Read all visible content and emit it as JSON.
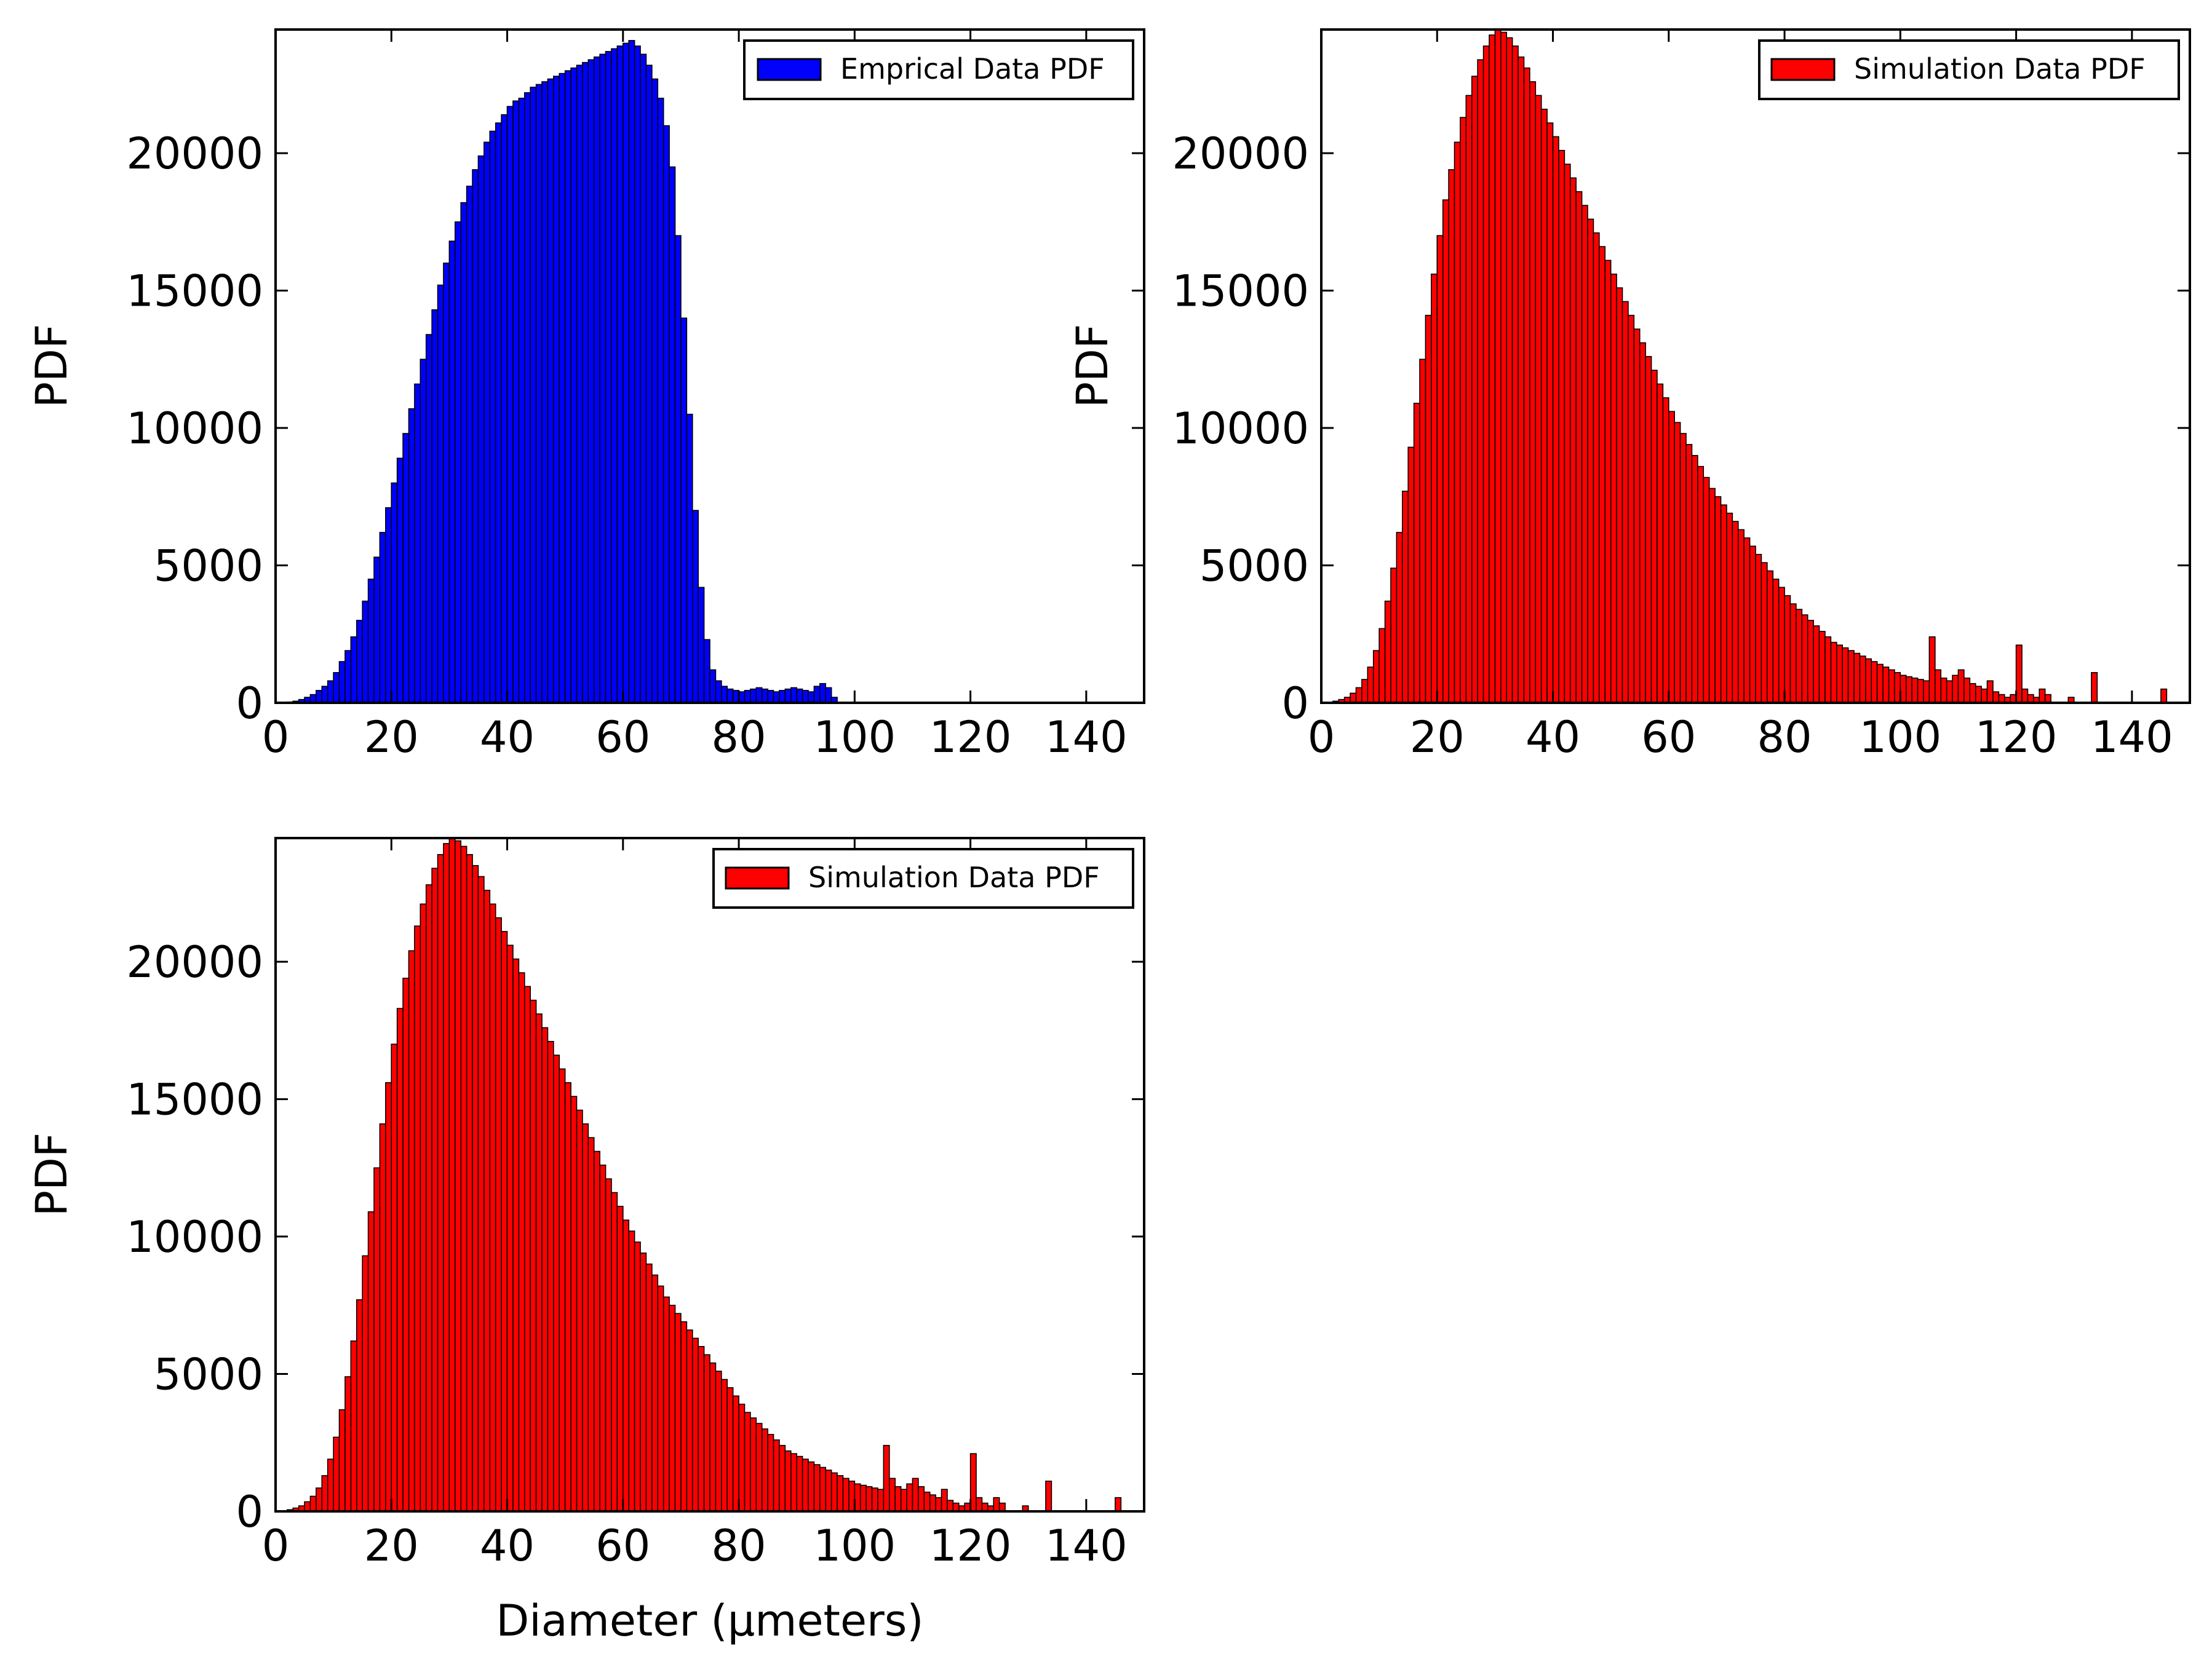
{
  "figure": {
    "panels": [
      {
        "id": "top-left",
        "legend_label": "Emprical Data PDF",
        "ylabel": "PDF",
        "xlabel": "",
        "bar_color": "#0000ff"
      },
      {
        "id": "top-right",
        "legend_label": "Simulation Data PDF",
        "ylabel": "PDF",
        "xlabel": "",
        "bar_color": "#ff0000"
      },
      {
        "id": "bottom-left",
        "legend_label": "Simulation Data PDF",
        "ylabel": "PDF",
        "xlabel": "Diameter (μmeters)",
        "bar_color": "#ff0000"
      }
    ]
  },
  "chart_data": [
    {
      "type": "bar",
      "title": "",
      "xlabel": "",
      "ylabel": "PDF",
      "xlim": [
        0,
        150
      ],
      "ylim": [
        0,
        24500
      ],
      "xticks": [
        0,
        20,
        40,
        60,
        80,
        100,
        120,
        140
      ],
      "yticks": [
        0,
        5000,
        10000,
        15000,
        20000
      ],
      "grid": false,
      "legend": "top-right",
      "bin_width": 1,
      "bin_start": 0,
      "series": [
        {
          "name": "Emprical Data PDF",
          "color": "#0000ff",
          "values": [
            0,
            10,
            30,
            60,
            120,
            200,
            300,
            450,
            600,
            800,
            1100,
            1500,
            1900,
            2400,
            3000,
            3700,
            4500,
            5300,
            6200,
            7100,
            8000,
            8900,
            9800,
            10700,
            11600,
            12500,
            13400,
            14300,
            15200,
            16000,
            16800,
            17500,
            18200,
            18800,
            19400,
            19900,
            20400,
            20800,
            21100,
            21400,
            21700,
            21900,
            22000,
            22200,
            22400,
            22500,
            22600,
            22700,
            22800,
            22900,
            23000,
            23100,
            23200,
            23300,
            23400,
            23500,
            23600,
            23700,
            23800,
            23900,
            24000,
            24100,
            23900,
            23600,
            23200,
            22700,
            22000,
            21000,
            19500,
            17000,
            14000,
            10500,
            7000,
            4200,
            2300,
            1200,
            800,
            600,
            500,
            450,
            400,
            450,
            500,
            550,
            500,
            450,
            400,
            450,
            500,
            550,
            500,
            450,
            400,
            600,
            700,
            550,
            200,
            0,
            0,
            0,
            0,
            0,
            0,
            0,
            0,
            0,
            0,
            0,
            0,
            0,
            0,
            0,
            0,
            0,
            0,
            0,
            0,
            0,
            0,
            0,
            0,
            0,
            0,
            0,
            0,
            0,
            0,
            0,
            0,
            0,
            0,
            0,
            0,
            0,
            0,
            0,
            0,
            0,
            0,
            0,
            0,
            0,
            0,
            0,
            0,
            0
          ]
        }
      ]
    },
    {
      "type": "bar",
      "title": "",
      "xlabel": "",
      "ylabel": "PDF",
      "xlim": [
        0,
        150
      ],
      "ylim": [
        0,
        24500
      ],
      "xticks": [
        0,
        20,
        40,
        60,
        80,
        100,
        120,
        140
      ],
      "yticks": [
        0,
        5000,
        10000,
        15000,
        20000
      ],
      "grid": false,
      "legend": "top-right",
      "bin_width": 1,
      "bin_start": 0,
      "series": [
        {
          "name": "Simulation Data PDF",
          "color": "#ff0000",
          "values": [
            0,
            20,
            60,
            120,
            200,
            350,
            550,
            850,
            1300,
            1900,
            2700,
            3700,
            4900,
            6200,
            7700,
            9300,
            10900,
            12500,
            14100,
            15600,
            17000,
            18300,
            19400,
            20400,
            21300,
            22100,
            22800,
            23400,
            23900,
            24300,
            24500,
            24400,
            24200,
            23900,
            23500,
            23100,
            22600,
            22100,
            21600,
            21100,
            20600,
            20100,
            19600,
            19100,
            18600,
            18100,
            17600,
            17100,
            16600,
            16100,
            15600,
            15100,
            14600,
            14100,
            13600,
            13100,
            12600,
            12100,
            11600,
            11100,
            10600,
            10200,
            9800,
            9400,
            9000,
            8600,
            8200,
            7800,
            7500,
            7200,
            6900,
            6600,
            6300,
            6000,
            5700,
            5400,
            5100,
            4800,
            4500,
            4200,
            3900,
            3600,
            3400,
            3200,
            3000,
            2800,
            2600,
            2400,
            2200,
            2100,
            2000,
            1900,
            1800,
            1700,
            1600,
            1500,
            1400,
            1300,
            1200,
            1100,
            1000,
            950,
            900,
            850,
            800,
            2400,
            1200,
            900,
            800,
            1000,
            1200,
            900,
            700,
            600,
            500,
            800,
            400,
            300,
            200,
            300,
            2100,
            500,
            300,
            200,
            500,
            300,
            0,
            0,
            0,
            200,
            0,
            0,
            0,
            1100,
            0,
            0,
            0,
            0,
            0,
            0,
            0,
            0,
            0,
            0,
            0,
            500,
            0,
            0,
            0,
            0,
            0
          ]
        }
      ]
    },
    {
      "type": "bar",
      "title": "",
      "xlabel": "Diameter (μmeters)",
      "ylabel": "PDF",
      "xlim": [
        0,
        150
      ],
      "ylim": [
        0,
        24500
      ],
      "xticks": [
        0,
        20,
        40,
        60,
        80,
        100,
        120,
        140
      ],
      "yticks": [
        0,
        5000,
        10000,
        15000,
        20000
      ],
      "grid": false,
      "legend": "top-right",
      "bin_width": 1,
      "bin_start": 0,
      "series": [
        {
          "name": "Simulation Data PDF",
          "color": "#ff0000",
          "values": [
            0,
            20,
            60,
            120,
            200,
            350,
            550,
            850,
            1300,
            1900,
            2700,
            3700,
            4900,
            6200,
            7700,
            9300,
            10900,
            12500,
            14100,
            15600,
            17000,
            18300,
            19400,
            20400,
            21300,
            22100,
            22800,
            23400,
            23900,
            24300,
            24500,
            24400,
            24200,
            23900,
            23500,
            23100,
            22600,
            22100,
            21600,
            21100,
            20600,
            20100,
            19600,
            19100,
            18600,
            18100,
            17600,
            17100,
            16600,
            16100,
            15600,
            15100,
            14600,
            14100,
            13600,
            13100,
            12600,
            12100,
            11600,
            11100,
            10600,
            10200,
            9800,
            9400,
            9000,
            8600,
            8200,
            7800,
            7500,
            7200,
            6900,
            6600,
            6300,
            6000,
            5700,
            5400,
            5100,
            4800,
            4500,
            4200,
            3900,
            3600,
            3400,
            3200,
            3000,
            2800,
            2600,
            2400,
            2200,
            2100,
            2000,
            1900,
            1800,
            1700,
            1600,
            1500,
            1400,
            1300,
            1200,
            1100,
            1000,
            950,
            900,
            850,
            800,
            2400,
            1200,
            900,
            800,
            1000,
            1200,
            900,
            700,
            600,
            500,
            800,
            400,
            300,
            200,
            300,
            2100,
            500,
            300,
            200,
            500,
            300,
            0,
            0,
            0,
            200,
            0,
            0,
            0,
            1100,
            0,
            0,
            0,
            0,
            0,
            0,
            0,
            0,
            0,
            0,
            0,
            500,
            0,
            0,
            0,
            0,
            0
          ]
        }
      ]
    }
  ]
}
